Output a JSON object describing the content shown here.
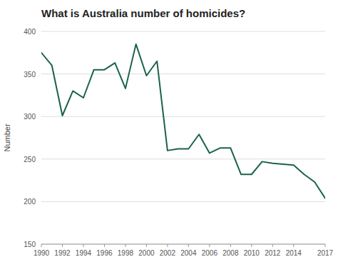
{
  "chart_data": {
    "type": "line",
    "title": "What is Australia number of homicides?",
    "ylabel": "Number",
    "x": [
      1990,
      1991,
      1992,
      1993,
      1994,
      1995,
      1996,
      1997,
      1998,
      1999,
      2000,
      2001,
      2002,
      2003,
      2004,
      2005,
      2006,
      2007,
      2008,
      2009,
      2010,
      2011,
      2012,
      2013,
      2014,
      2015,
      2016,
      2017
    ],
    "values": [
      375,
      360,
      301,
      330,
      322,
      355,
      355,
      363,
      333,
      385,
      348,
      365,
      260,
      262,
      262,
      279,
      257,
      263,
      263,
      232,
      232,
      247,
      245,
      244,
      243,
      232,
      223,
      204
    ],
    "color": "#1a6347",
    "ylim": [
      150,
      400
    ],
    "xlim": [
      1990,
      2017
    ],
    "yticks": [
      150,
      200,
      250,
      300,
      350,
      400
    ],
    "xticks": [
      1990,
      1992,
      1994,
      1996,
      1998,
      2000,
      2002,
      2004,
      2006,
      2008,
      2010,
      2012,
      2014,
      2017
    ],
    "grid": true
  }
}
